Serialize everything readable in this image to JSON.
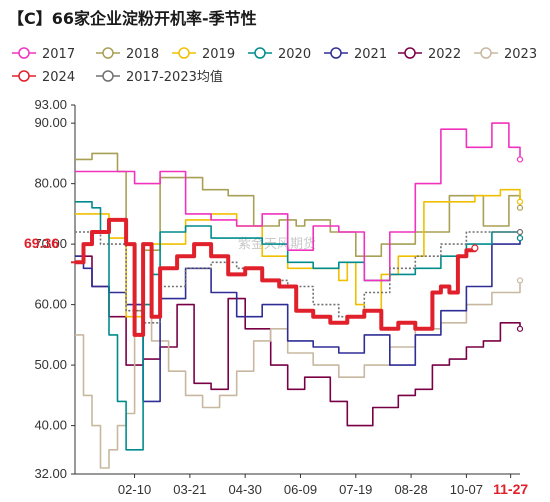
{
  "title": "【C】66家企业淀粉开机率-季节性",
  "watermark": "紫金天风期货",
  "current_value_label": "69.36",
  "highlight_date_label": "11-27",
  "colors": {
    "2017": "#f032be",
    "2018": "#a8a055",
    "2019": "#f0c000",
    "2020": "#008c8c",
    "2021": "#2e2e96",
    "2022": "#7a0046",
    "2023": "#c8b8a0",
    "2024": "#e0202a",
    "avg": "#707070"
  },
  "chart_data": {
    "type": "line",
    "title": "【C】66家企业淀粉开机率-季节性",
    "xlabel": "",
    "ylabel": "",
    "ylim": [
      32,
      93
    ],
    "y_ticks": [
      "32.00",
      "40.00",
      "50.00",
      "60.00",
      "70.00",
      "80.00",
      "90.00",
      "93.00"
    ],
    "x_tick_labels": [
      "02-10",
      "03-21",
      "04-30",
      "06-09",
      "07-19",
      "08-28",
      "10-07",
      "11-27"
    ],
    "legend": [
      "2017",
      "2018",
      "2019",
      "2020",
      "2021",
      "2022",
      "2023",
      "2024",
      "2017-2023均值"
    ],
    "series": [
      {
        "name": "2017",
        "key": "2017",
        "width": 1.6,
        "dash": "",
        "x": [
          0,
          4,
          7,
          10,
          13,
          16,
          19,
          22,
          25,
          28,
          31,
          34,
          37,
          40,
          43,
          46,
          49,
          51,
          52.3
        ],
        "values": [
          82,
          82,
          80,
          82,
          75,
          74,
          73,
          75,
          69,
          73,
          72,
          64,
          72,
          80,
          89,
          86,
          90,
          86,
          84
        ]
      },
      {
        "name": "2018",
        "key": "2018",
        "width": 1.6,
        "dash": "",
        "x": [
          0,
          2,
          4,
          5,
          6,
          7,
          8,
          10,
          12,
          15,
          18,
          21,
          24,
          26,
          27,
          30,
          33,
          36,
          40,
          44,
          48,
          51,
          52.3
        ],
        "values": [
          84,
          85,
          85,
          82,
          70,
          59,
          69,
          81,
          81,
          79,
          78,
          73,
          74,
          73,
          74,
          72,
          68,
          70,
          72,
          78,
          73,
          78,
          76
        ]
      },
      {
        "name": "2019",
        "key": "2019",
        "width": 1.6,
        "dash": "",
        "x": [
          0,
          2,
          4,
          6,
          8,
          10,
          13,
          16,
          19,
          22,
          25,
          28,
          31,
          32,
          33,
          34,
          36,
          38,
          41,
          44,
          47,
          50,
          52.3
        ],
        "values": [
          75,
          75,
          71,
          58,
          70,
          70,
          74,
          75,
          73,
          68,
          66,
          66,
          64,
          67,
          60,
          59,
          65,
          68,
          77,
          77,
          78,
          79,
          77
        ]
      },
      {
        "name": "2020",
        "key": "2020",
        "width": 1.6,
        "dash": "",
        "x": [
          0,
          1,
          2,
          3,
          4,
          5,
          6,
          7,
          8,
          9,
          10,
          13,
          16,
          19,
          22,
          25,
          28,
          31,
          34,
          37,
          40,
          43,
          46,
          49,
          52.3
        ],
        "values": [
          77,
          77,
          76,
          72,
          55,
          44,
          36,
          36,
          60,
          65,
          72,
          73,
          71,
          71,
          70,
          67,
          66,
          67,
          64,
          65,
          66,
          68,
          70,
          72,
          71
        ]
      },
      {
        "name": "2021",
        "key": "2021",
        "width": 1.6,
        "dash": "",
        "x": [
          0,
          1,
          2,
          4,
          6,
          8,
          10,
          13,
          16,
          19,
          22,
          25,
          28,
          31,
          34,
          37,
          40,
          43,
          46,
          49,
          52.3
        ],
        "values": [
          68,
          66,
          63,
          62,
          60,
          44,
          61,
          66,
          62,
          58,
          60,
          54,
          53,
          52,
          55,
          50,
          55,
          59,
          63,
          70,
          71
        ]
      },
      {
        "name": "2022",
        "key": "2022",
        "width": 1.6,
        "dash": "",
        "x": [
          0,
          2,
          4,
          6,
          8,
          10,
          12,
          14,
          16,
          18,
          20,
          23,
          25,
          27,
          30,
          32,
          35,
          38,
          40,
          42,
          44,
          46,
          48,
          50,
          52.3
        ],
        "values": [
          68,
          63,
          58,
          50,
          51,
          53,
          60,
          47,
          46,
          61,
          56,
          50,
          46,
          48,
          44,
          40,
          43,
          45,
          46,
          50,
          51,
          53,
          54,
          57,
          56
        ]
      },
      {
        "name": "2023",
        "key": "2023",
        "width": 1.6,
        "dash": "",
        "x": [
          0,
          1,
          2,
          3,
          4,
          5,
          6,
          7,
          9,
          11,
          13,
          15,
          17,
          19,
          21,
          23,
          25,
          28,
          31,
          34,
          37,
          40,
          43,
          46,
          49,
          52.3
        ],
        "values": [
          55,
          45,
          40,
          33,
          36,
          40,
          42,
          60,
          54,
          49,
          45,
          43,
          45,
          49,
          54,
          56,
          52,
          50,
          48,
          50,
          53,
          56,
          57,
          60,
          62,
          64
        ]
      },
      {
        "name": "2024",
        "key": "2024",
        "width": 4,
        "dash": "",
        "x": [
          0,
          1,
          2,
          4,
          6,
          7,
          8,
          9,
          10,
          12,
          14,
          16,
          18,
          20,
          22,
          24,
          26,
          28,
          30,
          32,
          34,
          36,
          38,
          40,
          42,
          43,
          44,
          45,
          46,
          47
        ],
        "values": [
          67,
          70,
          72,
          74,
          70,
          55,
          70,
          58,
          66,
          68,
          70,
          68,
          65,
          66,
          64,
          63,
          59,
          58,
          57,
          58,
          59,
          56,
          57,
          56,
          62,
          63,
          62,
          68,
          69,
          69.36
        ]
      },
      {
        "name": "2017-2023均值",
        "key": "avg",
        "width": 1.6,
        "dash": "2,2",
        "x": [
          0,
          3,
          6,
          8,
          10,
          13,
          16,
          19,
          22,
          25,
          28,
          31,
          34,
          37,
          40,
          43,
          46,
          49,
          52.3
        ],
        "values": [
          72,
          70,
          59,
          57,
          63,
          66,
          67,
          66,
          64,
          63,
          60,
          58,
          62,
          66,
          68,
          70,
          72,
          72,
          72
        ]
      }
    ]
  }
}
